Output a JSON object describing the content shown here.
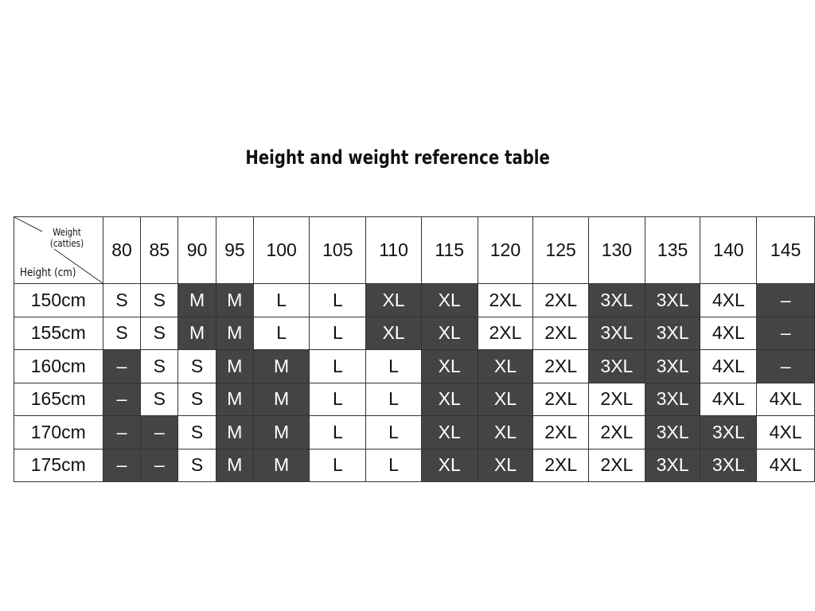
{
  "chart_data": {
    "type": "table",
    "title": "Height and weight reference table",
    "corner_labels": {
      "weight": "Weight (catties)",
      "height": "Height (cm)"
    },
    "columns": [
      "80",
      "85",
      "90",
      "95",
      "100",
      "105",
      "110",
      "115",
      "120",
      "125",
      "130",
      "135",
      "140",
      "145"
    ],
    "rows": [
      {
        "label": "150cm",
        "values": [
          "S",
          "S",
          "M",
          "M",
          "L",
          "L",
          "XL",
          "XL",
          "2XL",
          "2XL",
          "3XL",
          "3XL",
          "4XL",
          "–"
        ],
        "shaded": [
          2,
          3,
          6,
          7,
          10,
          11,
          13
        ]
      },
      {
        "label": "155cm",
        "values": [
          "S",
          "S",
          "M",
          "M",
          "L",
          "L",
          "XL",
          "XL",
          "2XL",
          "2XL",
          "3XL",
          "3XL",
          "4XL",
          "–"
        ],
        "shaded": [
          2,
          3,
          6,
          7,
          10,
          11,
          13
        ]
      },
      {
        "label": "160cm",
        "values": [
          "–",
          "S",
          "S",
          "M",
          "M",
          "L",
          "L",
          "XL",
          "XL",
          "2XL",
          "3XL",
          "3XL",
          "4XL",
          "–"
        ],
        "shaded": [
          0,
          3,
          4,
          7,
          8,
          10,
          11,
          13
        ]
      },
      {
        "label": "165cm",
        "values": [
          "–",
          "S",
          "S",
          "M",
          "M",
          "L",
          "L",
          "XL",
          "XL",
          "2XL",
          "2XL",
          "3XL",
          "4XL",
          "4XL"
        ],
        "shaded": [
          0,
          3,
          4,
          7,
          8,
          11
        ]
      },
      {
        "label": "170cm",
        "values": [
          "–",
          "–",
          "S",
          "M",
          "M",
          "L",
          "L",
          "XL",
          "XL",
          "2XL",
          "2XL",
          "3XL",
          "3XL",
          "4XL"
        ],
        "shaded": [
          0,
          1,
          3,
          4,
          7,
          8,
          11,
          12
        ]
      },
      {
        "label": "175cm",
        "values": [
          "–",
          "–",
          "S",
          "M",
          "M",
          "L",
          "L",
          "XL",
          "XL",
          "2XL",
          "2XL",
          "3XL",
          "3XL",
          "4XL"
        ],
        "shaded": [
          0,
          1,
          3,
          4,
          7,
          8,
          11,
          12
        ]
      }
    ],
    "colors": {
      "shaded": "#444444",
      "plain": "#ffffff"
    }
  }
}
